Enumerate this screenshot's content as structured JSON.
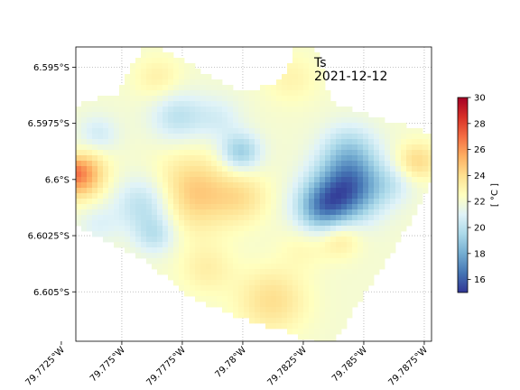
{
  "title": {
    "variable": "Ts",
    "date": "2021-12-12"
  },
  "map": {
    "lon_range": [
      -79.7731,
      -79.7878
    ],
    "lat_range": [
      -6.5941,
      -6.6072
    ],
    "x_ticks": [
      {
        "value": -79.7725,
        "label": "79.7725°W"
      },
      {
        "value": -79.775,
        "label": "79.775°W"
      },
      {
        "value": -79.7775,
        "label": "79.7775°W"
      },
      {
        "value": -79.78,
        "label": "79.78°W"
      },
      {
        "value": -79.7825,
        "label": "79.7825°W"
      },
      {
        "value": -79.785,
        "label": "79.785°W"
      },
      {
        "value": -79.7875,
        "label": "79.7875°W"
      }
    ],
    "y_ticks": [
      {
        "value": -6.595,
        "label": "6.595°S"
      },
      {
        "value": -6.5975,
        "label": "6.5975°S"
      },
      {
        "value": -6.6,
        "label": "6.6°S"
      },
      {
        "value": -6.6025,
        "label": "6.6025°S"
      },
      {
        "value": -6.605,
        "label": "6.605°S"
      }
    ],
    "grid": true,
    "boundary_lonlat": [
      [
        -79.77235,
        -6.59785
      ],
      [
        -79.77325,
        -6.5966
      ],
      [
        -79.7748,
        -6.5962
      ],
      [
        -79.7755,
        -6.59475
      ],
      [
        -79.7759,
        -6.5942
      ],
      [
        -79.7764,
        -6.59415
      ],
      [
        -79.7771,
        -6.5944
      ],
      [
        -79.7792,
        -6.59575
      ],
      [
        -79.7804,
        -6.59615
      ],
      [
        -79.78075,
        -6.5958
      ],
      [
        -79.7816,
        -6.5956
      ],
      [
        -79.78185,
        -6.59495
      ],
      [
        -79.7823,
        -6.5938
      ],
      [
        -79.783,
        -6.59405
      ],
      [
        -79.7835,
        -6.5959
      ],
      [
        -79.7836,
        -6.5965
      ],
      [
        -79.7851,
        -6.5971
      ],
      [
        -79.7876,
        -6.5979
      ],
      [
        -79.7885,
        -6.5984
      ],
      [
        -79.7879,
        -6.59985
      ],
      [
        -79.7863,
        -6.6031
      ],
      [
        -79.7851,
        -6.605
      ],
      [
        -79.7842,
        -6.6065
      ],
      [
        -79.7836,
        -6.6075
      ],
      [
        -79.7816,
        -6.6067
      ],
      [
        -79.7799,
        -6.6062
      ],
      [
        -79.7778,
        -6.6052
      ],
      [
        -79.7758,
        -6.60345
      ],
      [
        -79.7739,
        -6.60245
      ],
      [
        -79.77225,
        -6.6016
      ]
    ],
    "field": {
      "base": 22.0,
      "features": [
        {
          "lon": -79.7732,
          "lat": -6.59975,
          "amp": 4.5,
          "r": 0.00075
        },
        {
          "lon": -79.7726,
          "lat": -6.5996,
          "amp": 1.5,
          "r": 0.0004
        },
        {
          "lon": -79.7779,
          "lat": -6.6006,
          "amp": 2.8,
          "r": 0.0012
        },
        {
          "lon": -79.78,
          "lat": -6.6008,
          "amp": 1.5,
          "r": 0.0008
        },
        {
          "lon": -79.7773,
          "lat": -6.5972,
          "amp": -2.0,
          "r": 0.0008
        },
        {
          "lon": -79.779,
          "lat": -6.5973,
          "amp": -1.2,
          "r": 0.0007
        },
        {
          "lon": -79.774,
          "lat": -6.598,
          "amp": -1.5,
          "r": 0.0006
        },
        {
          "lon": -79.773,
          "lat": -6.5988,
          "amp": -0.8,
          "r": 0.0004
        },
        {
          "lon": -79.776,
          "lat": -6.6011,
          "amp": -2.5,
          "r": 0.0009
        },
        {
          "lon": -79.7764,
          "lat": -6.6025,
          "amp": -1.8,
          "r": 0.0006
        },
        {
          "lon": -79.774,
          "lat": -6.602,
          "amp": -1.0,
          "r": 0.0006
        },
        {
          "lon": -79.7799,
          "lat": -6.5988,
          "amp": -3.0,
          "r": 0.0006
        },
        {
          "lon": -79.7844,
          "lat": -6.6003,
          "amp": -5.5,
          "r": 0.001
        },
        {
          "lon": -79.7833,
          "lat": -6.6013,
          "amp": -4.0,
          "r": 0.0008
        },
        {
          "lon": -79.7844,
          "lat": -6.5986,
          "amp": -2.0,
          "r": 0.0008
        },
        {
          "lon": -79.7863,
          "lat": -6.6002,
          "amp": -1.0,
          "r": 0.0006
        },
        {
          "lon": -79.7872,
          "lat": -6.5992,
          "amp": 2.2,
          "r": 0.0006
        },
        {
          "lon": -79.784,
          "lat": -6.6026,
          "amp": 1.8,
          "r": 0.0006
        },
        {
          "lon": -79.7765,
          "lat": -6.5955,
          "amp": 1.2,
          "r": 0.0007
        },
        {
          "lon": -79.782,
          "lat": -6.5955,
          "amp": 1.0,
          "r": 0.0008
        },
        {
          "lon": -79.7812,
          "lat": -6.6054,
          "amp": 2.0,
          "r": 0.001
        },
        {
          "lon": -79.7785,
          "lat": -6.604,
          "amp": 1.2,
          "r": 0.0008
        },
        {
          "lon": -79.7825,
          "lat": -6.603,
          "amp": 0.8,
          "r": 0.0007
        }
      ]
    }
  },
  "colorbar": {
    "label": "[ °C ]",
    "min": 15,
    "max": 30,
    "ticks": [
      "16",
      "18",
      "20",
      "22",
      "24",
      "26",
      "28",
      "30"
    ],
    "colormap": "RdYlBu_r",
    "colormap_stops": [
      "#313695",
      "#4575b4",
      "#74add1",
      "#abd9e9",
      "#e0f3f8",
      "#ffffbf",
      "#fee090",
      "#fdae61",
      "#f46d43",
      "#d73027",
      "#a50026"
    ]
  }
}
